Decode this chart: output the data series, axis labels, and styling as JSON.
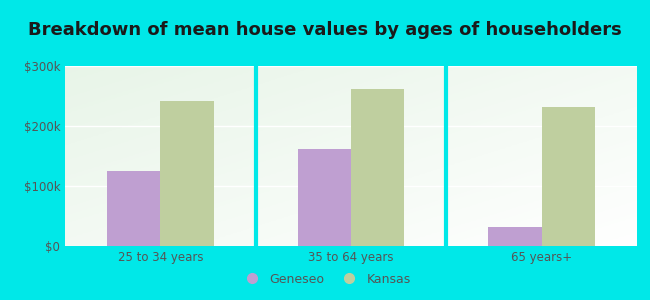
{
  "title": "Breakdown of mean house values by ages of householders",
  "categories": [
    "25 to 34 years",
    "35 to 64 years",
    "65 years+"
  ],
  "geneseo_values": [
    125000,
    162000,
    32000
  ],
  "kansas_values": [
    242000,
    262000,
    232000
  ],
  "geneseo_color": "#bf9fd1",
  "kansas_color": "#bfcf9f",
  "background_color": "#00e8e8",
  "plot_bg_color": "#e8f5e8",
  "ylim": [
    0,
    300000
  ],
  "yticks": [
    0,
    100000,
    200000,
    300000
  ],
  "ytick_labels": [
    "$0",
    "$100k",
    "$200k",
    "$300k"
  ],
  "legend_labels": [
    "Geneseo",
    "Kansas"
  ],
  "bar_width": 0.28,
  "title_fontsize": 13,
  "tick_fontsize": 8.5,
  "legend_fontsize": 9
}
